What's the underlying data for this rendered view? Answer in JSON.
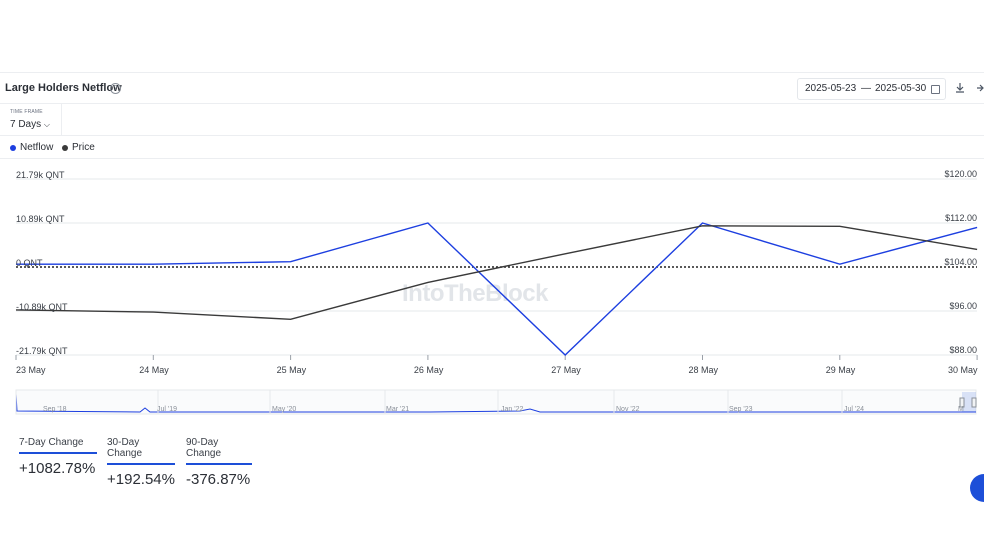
{
  "title": "Large Holders Netflow",
  "help_icon": "question-circle-icon",
  "date_range": {
    "start": "2025-05-23",
    "separator": "—",
    "end": "2025-05-30"
  },
  "time_frame": {
    "label": "TIME FRAME",
    "value": "7 Days"
  },
  "legend": [
    {
      "name": "Netflow",
      "color": "#1d3fe0"
    },
    {
      "name": "Price",
      "color": "#3a3a3a"
    }
  ],
  "watermark": "IntoTheBlock",
  "navigator_labels": [
    "Sep '18",
    "Jul '19",
    "May '20",
    "Mar '21",
    "Jan '22",
    "Nov '22",
    "Sep '23",
    "Jul '24",
    "M"
  ],
  "stats": [
    {
      "label": "7-Day Change",
      "value": "+1082.78%"
    },
    {
      "label": "30-Day Change",
      "value": "+192.54%"
    },
    {
      "label": "90-Day Change",
      "value": "-376.87%"
    }
  ],
  "chart_data": {
    "type": "line",
    "x": [
      "23 May",
      "24 May",
      "25 May",
      "26 May",
      "27 May",
      "28 May",
      "29 May",
      "30 May"
    ],
    "left_axis": {
      "ticks": [
        "21.79k QNT",
        "10.89k QNT",
        "0 QNT",
        "-10.89k QNT",
        "-21.79k QNT"
      ],
      "range": [
        -21790,
        21790
      ]
    },
    "right_axis": {
      "ticks": [
        "$120.00",
        "$112.00",
        "$104.00",
        "$96.00",
        "$88.00"
      ],
      "range": [
        88,
        120
      ]
    },
    "series": [
      {
        "name": "Netflow",
        "axis": "left",
        "color": "#1d3fe0",
        "values": [
          700,
          700,
          1300,
          10900,
          -21790,
          10900,
          700,
          9800
        ]
      },
      {
        "name": "Price",
        "axis": "right",
        "color": "#3a3a3a",
        "values": [
          96.2,
          95.8,
          94.5,
          101.2,
          106.4,
          111.5,
          111.4,
          107.2
        ]
      }
    ],
    "grid": true,
    "legend_position": "top-left"
  }
}
